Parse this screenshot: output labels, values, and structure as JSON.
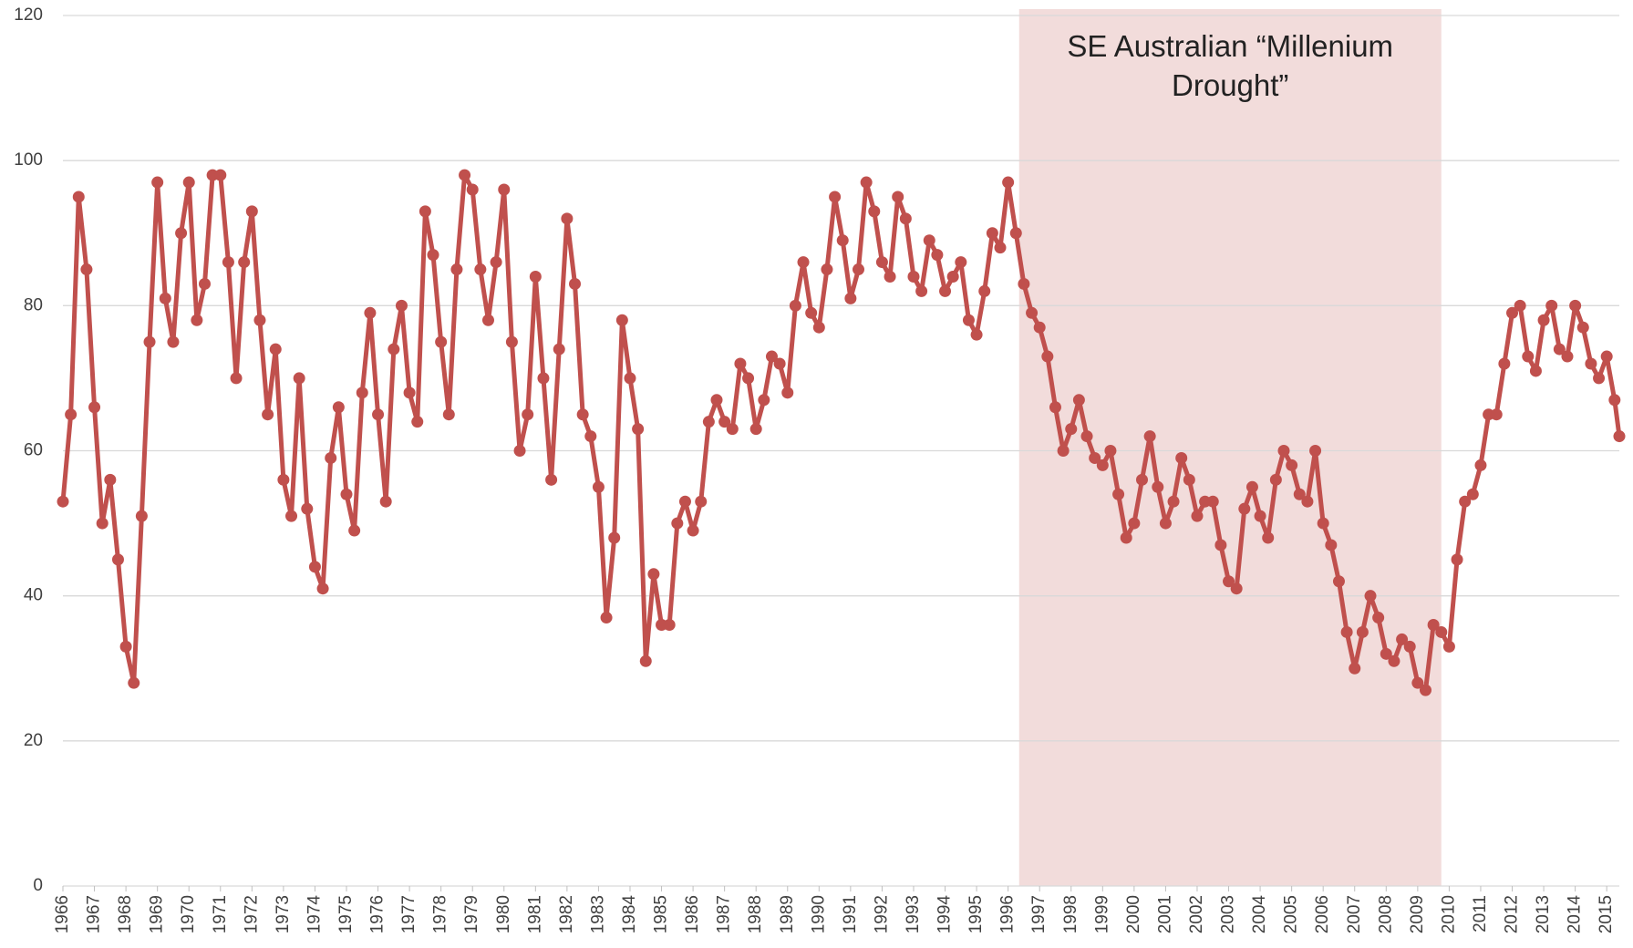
{
  "chart_data": {
    "type": "line",
    "annotation": "SE Australian “Millenium Drought”",
    "shade": {
      "x": [
        1996.35,
        2009.75
      ],
      "color": "#f2dcdb"
    },
    "x": [
      1966,
      1966.25,
      1966.5,
      1966.75,
      1967,
      1967.25,
      1967.5,
      1967.75,
      1968,
      1968.25,
      1968.5,
      1968.75,
      1969,
      1969.25,
      1969.5,
      1969.75,
      1970,
      1970.25,
      1970.5,
      1970.75,
      1971,
      1971.25,
      1971.5,
      1971.75,
      1972,
      1972.25,
      1972.5,
      1972.75,
      1973,
      1973.25,
      1973.5,
      1973.75,
      1974,
      1974.25,
      1974.5,
      1974.75,
      1975,
      1975.25,
      1975.5,
      1975.75,
      1976,
      1976.25,
      1976.5,
      1976.75,
      1977,
      1977.25,
      1977.5,
      1977.75,
      1978,
      1978.25,
      1978.5,
      1978.75,
      1979,
      1979.25,
      1979.5,
      1979.75,
      1980,
      1980.25,
      1980.5,
      1980.75,
      1981,
      1981.25,
      1981.5,
      1981.75,
      1982,
      1982.25,
      1982.5,
      1982.75,
      1983,
      1983.25,
      1983.5,
      1983.75,
      1984,
      1984.25,
      1984.5,
      1984.75,
      1985,
      1985.25,
      1985.5,
      1985.75,
      1986,
      1986.25,
      1986.5,
      1986.75,
      1987,
      1987.25,
      1987.5,
      1987.75,
      1988,
      1988.25,
      1988.5,
      1988.75,
      1989,
      1989.25,
      1989.5,
      1989.75,
      1990,
      1990.25,
      1990.5,
      1990.75,
      1991,
      1991.25,
      1991.5,
      1991.75,
      1992,
      1992.25,
      1992.5,
      1992.75,
      1993,
      1993.25,
      1993.5,
      1993.75,
      1994,
      1994.25,
      1994.5,
      1994.75,
      1995,
      1995.25,
      1995.5,
      1995.75,
      1996,
      1996.25,
      1996.5,
      1996.75,
      1997,
      1997.25,
      1997.5,
      1997.75,
      1998,
      1998.25,
      1998.5,
      1998.75,
      1999,
      1999.25,
      1999.5,
      1999.75,
      2000,
      2000.25,
      2000.5,
      2000.75,
      2001,
      2001.25,
      2001.5,
      2001.75,
      2002,
      2002.25,
      2002.5,
      2002.75,
      2003,
      2003.25,
      2003.5,
      2003.75,
      2004,
      2004.25,
      2004.5,
      2004.75,
      2005,
      2005.25,
      2005.5,
      2005.75,
      2006,
      2006.25,
      2006.5,
      2006.75,
      2007,
      2007.25,
      2007.5,
      2007.75,
      2008,
      2008.25,
      2008.5,
      2008.75,
      2009,
      2009.25,
      2009.5,
      2009.75,
      2010,
      2010.25,
      2010.5,
      2010.75,
      2011,
      2011.25,
      2011.5,
      2011.75,
      2012,
      2012.25,
      2012.5,
      2012.75,
      2013,
      2013.25,
      2013.5,
      2013.75,
      2014,
      2014.25,
      2014.5,
      2014.75,
      2015,
      2015.25,
      2015.4
    ],
    "series": [
      {
        "color": "#c0504d",
        "values": [
          53,
          65,
          95,
          85,
          66,
          50,
          56,
          45,
          33,
          28,
          51,
          75,
          97,
          81,
          75,
          90,
          97,
          78,
          83,
          98,
          98,
          86,
          70,
          86,
          93,
          78,
          65,
          74,
          56,
          51,
          70,
          52,
          44,
          41,
          59,
          66,
          54,
          49,
          68,
          79,
          65,
          53,
          74,
          80,
          68,
          64,
          93,
          87,
          75,
          65,
          85,
          98,
          96,
          85,
          78,
          86,
          96,
          75,
          60,
          65,
          84,
          70,
          56,
          74,
          92,
          83,
          65,
          62,
          55,
          37,
          48,
          78,
          70,
          63,
          31,
          43,
          36,
          36,
          50,
          53,
          49,
          53,
          64,
          67,
          64,
          63,
          72,
          70,
          63,
          67,
          73,
          72,
          68,
          80,
          86,
          79,
          77,
          85,
          95,
          89,
          81,
          85,
          97,
          93,
          86,
          84,
          95,
          92,
          84,
          82,
          89,
          87,
          82,
          84,
          86,
          78,
          76,
          82,
          90,
          88,
          97,
          90,
          83,
          79,
          77,
          73,
          66,
          60,
          63,
          67,
          62,
          59,
          58,
          60,
          54,
          48,
          50,
          56,
          62,
          55,
          50,
          53,
          59,
          56,
          51,
          53,
          53,
          47,
          42,
          41,
          52,
          55,
          51,
          48,
          56,
          60,
          58,
          54,
          53,
          60,
          50,
          47,
          42,
          35,
          30,
          35,
          40,
          37,
          32,
          31,
          34,
          33,
          28,
          27,
          36,
          35,
          33,
          45,
          53,
          54,
          58,
          65,
          65,
          72,
          79,
          80,
          73,
          71,
          78,
          80,
          74,
          73,
          80,
          77,
          72,
          70,
          73,
          67,
          62
        ]
      }
    ],
    "xlim": [
      1966,
      2015.4
    ],
    "xticks": [
      1966,
      1967,
      1968,
      1969,
      1970,
      1971,
      1972,
      1973,
      1974,
      1975,
      1976,
      1977,
      1978,
      1979,
      1980,
      1981,
      1982,
      1983,
      1984,
      1985,
      1986,
      1987,
      1988,
      1989,
      1990,
      1991,
      1992,
      1993,
      1994,
      1995,
      1996,
      1997,
      1998,
      1999,
      2000,
      2001,
      2002,
      2003,
      2004,
      2005,
      2006,
      2007,
      2008,
      2009,
      2010,
      2011,
      2012,
      2013,
      2014,
      2015
    ],
    "ylim": [
      0,
      120
    ],
    "yticks": [
      0,
      20,
      40,
      60,
      80,
      100,
      120
    ],
    "grid": true
  }
}
